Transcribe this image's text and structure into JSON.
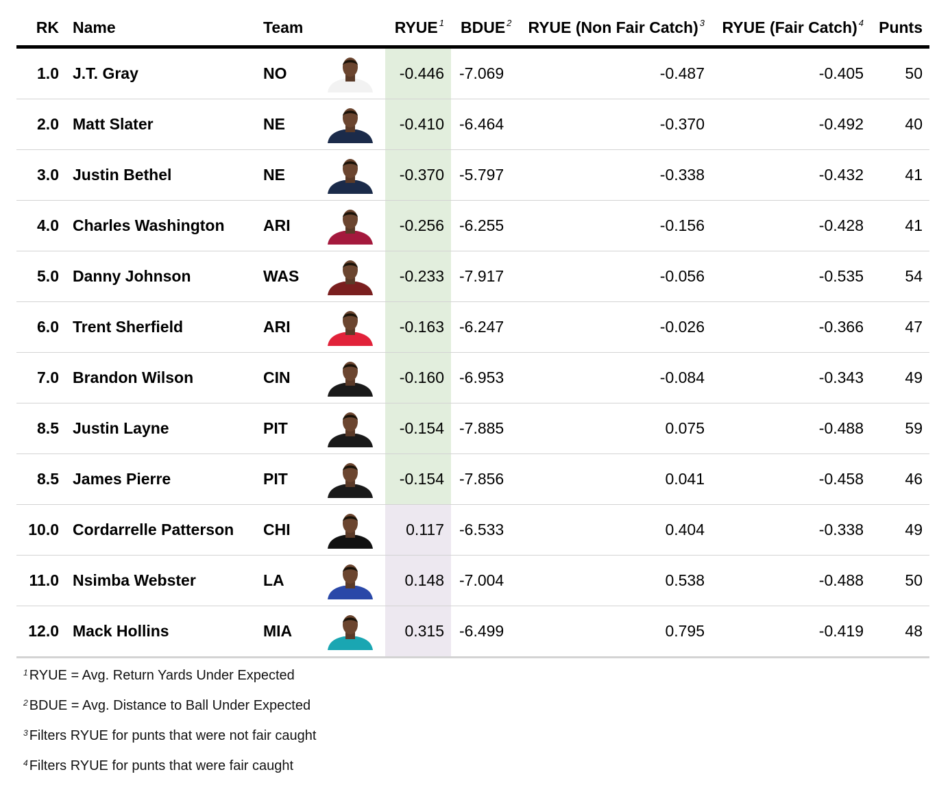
{
  "chart_data": {
    "type": "table",
    "columns": [
      {
        "key": "rk",
        "label": "RK",
        "sup": ""
      },
      {
        "key": "name",
        "label": "Name",
        "sup": ""
      },
      {
        "key": "team",
        "label": "Team",
        "sup": ""
      },
      {
        "key": "ryue",
        "label": "RYUE",
        "sup": "1"
      },
      {
        "key": "bdue",
        "label": "BDUE",
        "sup": "2"
      },
      {
        "key": "ryue_nfc",
        "label": "RYUE (Non Fair Catch)",
        "sup": "3"
      },
      {
        "key": "ryue_fc",
        "label": "RYUE (Fair Catch)",
        "sup": "4"
      },
      {
        "key": "punts",
        "label": "Punts",
        "sup": ""
      }
    ],
    "rows": [
      {
        "rk": "1.0",
        "name": "J.T. Gray",
        "team": "NO",
        "ryue": "-0.446",
        "bdue": "-7.069",
        "ryue_nfc": "-0.487",
        "ryue_fc": "-0.405",
        "punts": "50"
      },
      {
        "rk": "2.0",
        "name": "Matt Slater",
        "team": "NE",
        "ryue": "-0.410",
        "bdue": "-6.464",
        "ryue_nfc": "-0.370",
        "ryue_fc": "-0.492",
        "punts": "40"
      },
      {
        "rk": "3.0",
        "name": "Justin Bethel",
        "team": "NE",
        "ryue": "-0.370",
        "bdue": "-5.797",
        "ryue_nfc": "-0.338",
        "ryue_fc": "-0.432",
        "punts": "41"
      },
      {
        "rk": "4.0",
        "name": "Charles Washington",
        "team": "ARI",
        "ryue": "-0.256",
        "bdue": "-6.255",
        "ryue_nfc": "-0.156",
        "ryue_fc": "-0.428",
        "punts": "41"
      },
      {
        "rk": "5.0",
        "name": "Danny Johnson",
        "team": "WAS",
        "ryue": "-0.233",
        "bdue": "-7.917",
        "ryue_nfc": "-0.056",
        "ryue_fc": "-0.535",
        "punts": "54"
      },
      {
        "rk": "6.0",
        "name": "Trent Sherfield",
        "team": "ARI",
        "ryue": "-0.163",
        "bdue": "-6.247",
        "ryue_nfc": "-0.026",
        "ryue_fc": "-0.366",
        "punts": "47"
      },
      {
        "rk": "7.0",
        "name": "Brandon Wilson",
        "team": "CIN",
        "ryue": "-0.160",
        "bdue": "-6.953",
        "ryue_nfc": "-0.084",
        "ryue_fc": "-0.343",
        "punts": "49"
      },
      {
        "rk": "8.5",
        "name": "Justin Layne",
        "team": "PIT",
        "ryue": "-0.154",
        "bdue": "-7.885",
        "ryue_nfc": "0.075",
        "ryue_fc": "-0.488",
        "punts": "59"
      },
      {
        "rk": "8.5",
        "name": "James Pierre",
        "team": "PIT",
        "ryue": "-0.154",
        "bdue": "-7.856",
        "ryue_nfc": "0.041",
        "ryue_fc": "-0.458",
        "punts": "46"
      },
      {
        "rk": "10.0",
        "name": "Cordarrelle Patterson",
        "team": "CHI",
        "ryue": "0.117",
        "bdue": "-6.533",
        "ryue_nfc": "0.404",
        "ryue_fc": "-0.338",
        "punts": "49"
      },
      {
        "rk": "11.0",
        "name": "Nsimba Webster",
        "team": "LA",
        "ryue": "0.148",
        "bdue": "-7.004",
        "ryue_nfc": "0.538",
        "ryue_fc": "-0.488",
        "punts": "50"
      },
      {
        "rk": "12.0",
        "name": "Mack Hollins",
        "team": "MIA",
        "ryue": "0.315",
        "bdue": "-6.499",
        "ryue_nfc": "0.795",
        "ryue_fc": "-0.419",
        "punts": "48"
      }
    ],
    "highlight_column": "ryue",
    "highlight_colors": {
      "negative": "#e2eedd",
      "positive": "#ede8f0"
    },
    "jersey_colors": [
      "#f2f2f2",
      "#1b2b4a",
      "#1b2b4a",
      "#a4193d",
      "#7a1f1f",
      "#e1223a",
      "#1a1a1a",
      "#1a1a1a",
      "#1a1a1a",
      "#111111",
      "#2a48a8",
      "#1aa6b2"
    ],
    "footnotes": [
      {
        "sup": "1",
        "text": "RYUE = Avg. Return Yards Under Expected"
      },
      {
        "sup": "2",
        "text": "BDUE = Avg. Distance to Ball Under Expected"
      },
      {
        "sup": "3",
        "text": "Filters RYUE for punts that were not fair caught"
      },
      {
        "sup": "4",
        "text": "Filters RYUE for punts that were fair caught"
      }
    ]
  }
}
